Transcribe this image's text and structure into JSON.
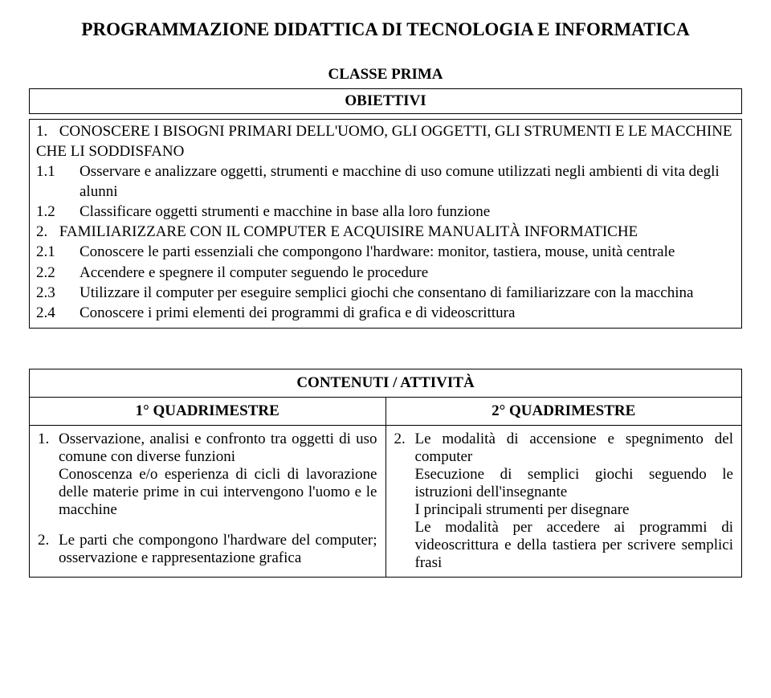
{
  "title": "PROGRAMMAZIONE  DIDATTICA  DI  TECNOLOGIA E INFORMATICA",
  "subtitle": "CLASSE PRIMA",
  "objectives_heading": "OBIETTIVI",
  "section1": {
    "head_num": "1.",
    "head_text": "CONOSCERE I BISOGNI PRIMARI DELL'UOMO, GLI OGGETTI, GLI STRUMENTI E LE MACCHINE CHE LI SODDISFANO",
    "items": [
      {
        "num": "1.1",
        "text": "Osservare e analizzare oggetti, strumenti e macchine di uso comune utilizzati negli ambienti di vita degli alunni"
      },
      {
        "num": "1.2",
        "text": "Classificare oggetti strumenti e macchine in base alla loro funzione"
      }
    ]
  },
  "section2": {
    "head_num": "2.",
    "head_text": "FAMILIARIZZARE CON IL COMPUTER E ACQUISIRE MANUALITÀ INFORMATICHE",
    "items": [
      {
        "num": "2.1",
        "text": "Conoscere le parti essenziali che compongono l'hardware: monitor, tastiera, mouse, unità centrale"
      },
      {
        "num": "2.2",
        "text": "Accendere e spegnere il computer seguendo le procedure"
      },
      {
        "num": "2.3",
        "text": "Utilizzare il computer per eseguire semplici giochi che consentano di familiarizzare con la macchina"
      },
      {
        "num": "2.4",
        "text": "Conoscere i primi elementi dei programmi di grafica e di videoscrittura"
      }
    ]
  },
  "contenuti_heading": "CONTENUTI / ATTIVITÀ",
  "q1_label": "1° QUADRIMESTRE",
  "q2_label": "2° QUADRIMESTRE",
  "q1_items": [
    {
      "num": "1.",
      "text": "Osservazione, analisi e confronto tra oggetti di uso comune con diverse funzioni\nConoscenza e/o esperienza di cicli di lavorazione delle materie prime in cui intervengono l'uomo e le macchine"
    },
    {
      "num": "2.",
      "text": "Le parti che compongono l'hardware del computer; osservazione e rappresentazione grafica"
    }
  ],
  "q2_items": [
    {
      "num": "2.",
      "text": "Le modalità di accensione e spegnimento del computer\nEsecuzione di semplici giochi seguendo le istruzioni dell'insegnante\nI principali strumenti per disegnare\nLe modalità per accedere ai programmi di videoscrittura e della tastiera per scrivere semplici frasi"
    }
  ]
}
